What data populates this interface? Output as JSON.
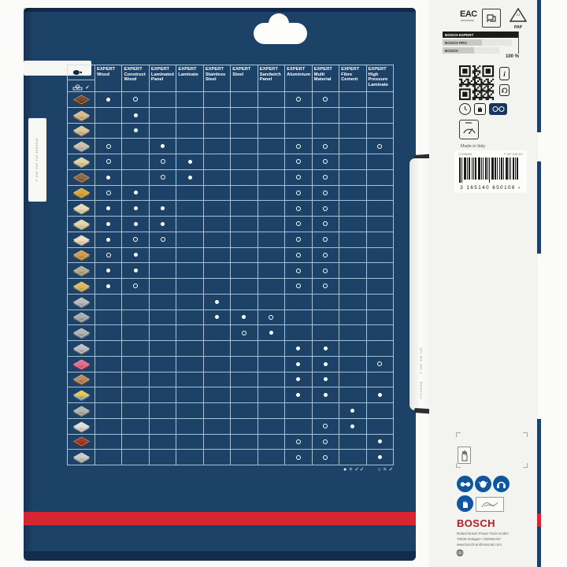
{
  "package": {
    "brand_blue": "#1c4268",
    "accent_red": "#d62631",
    "left_label_codes": [
      "F 03F 305 110",
      "1609203"
    ],
    "table": {
      "machine_rows": [
        {
          "icon": "circular-saw-icon",
          "check": "✓"
        },
        {
          "icon": "table-saw-icon",
          "check": "✓"
        }
      ],
      "columns": [
        {
          "brand": "EXPERT",
          "name": "Wood"
        },
        {
          "brand": "EXPERT",
          "name": "Construct Wood"
        },
        {
          "brand": "EXPERT",
          "name": "Laminated Panel"
        },
        {
          "brand": "EXPERT",
          "name": "Laminate"
        },
        {
          "brand": "EXPERT",
          "name": "Stainless Steel"
        },
        {
          "brand": "EXPERT",
          "name": "Steel"
        },
        {
          "brand": "EXPERT",
          "name": "Sandwich Panel"
        },
        {
          "brand": "EXPERT",
          "name": "Aluminium"
        },
        {
          "brand": "EXPERT",
          "name": "Multi Material"
        },
        {
          "brand": "EXPERT",
          "name": "Fibre Cement"
        },
        {
          "brand": "EXPERT",
          "name": "High Pressure Laminate"
        }
      ],
      "dot_values": {
        "2": "double-check",
        "1": "single-check",
        "0": "none"
      },
      "rows": [
        {
          "icon": "solid-hardwood",
          "colors": [
            "#7d4b2a",
            "#53301a"
          ],
          "dots": [
            2,
            1,
            0,
            0,
            0,
            0,
            0,
            1,
            1,
            0,
            0
          ]
        },
        {
          "icon": "softwood-planks",
          "colors": [
            "#d9bb8e",
            "#a8845c"
          ],
          "dots": [
            0,
            2,
            0,
            0,
            0,
            0,
            0,
            0,
            0,
            0,
            0
          ]
        },
        {
          "icon": "planed-board",
          "colors": [
            "#dec69b",
            "#ab8a60"
          ],
          "dots": [
            0,
            2,
            0,
            0,
            0,
            0,
            0,
            0,
            0,
            0,
            0
          ]
        },
        {
          "icon": "worktop-board",
          "colors": [
            "#cfc0a6",
            "#8f9398"
          ],
          "dots": [
            1,
            0,
            2,
            0,
            0,
            0,
            0,
            1,
            1,
            0,
            1
          ]
        },
        {
          "icon": "laminate-board",
          "colors": [
            "#e4d0a5",
            "#b09c6e"
          ],
          "dots": [
            1,
            0,
            1,
            2,
            0,
            0,
            0,
            1,
            1,
            0,
            0
          ]
        },
        {
          "icon": "rough-sawn-wood",
          "colors": [
            "#8d6b49",
            "#5f452c"
          ],
          "dots": [
            2,
            0,
            1,
            2,
            0,
            0,
            0,
            1,
            1,
            0,
            0
          ]
        },
        {
          "icon": "osb-board",
          "colors": [
            "#dca834",
            "#a87c22"
          ],
          "dots": [
            1,
            2,
            0,
            0,
            0,
            0,
            0,
            1,
            1,
            0,
            0
          ]
        },
        {
          "icon": "glued-panel",
          "colors": [
            "#ead9b8",
            "#bca87e"
          ],
          "dots": [
            2,
            2,
            2,
            0,
            0,
            0,
            0,
            1,
            1,
            0,
            0
          ]
        },
        {
          "icon": "blockboard",
          "colors": [
            "#e7d3ae",
            "#b7a077"
          ],
          "dots": [
            2,
            2,
            2,
            0,
            0,
            0,
            0,
            1,
            1,
            0,
            0
          ]
        },
        {
          "icon": "veneer-board",
          "colors": [
            "#eedec3",
            "#c0ab85"
          ],
          "dots": [
            2,
            1,
            1,
            0,
            0,
            0,
            0,
            1,
            1,
            0,
            0
          ]
        },
        {
          "icon": "chipboard",
          "colors": [
            "#d69a4d",
            "#a06f2e"
          ],
          "dots": [
            1,
            2,
            0,
            0,
            0,
            0,
            0,
            1,
            1,
            0,
            0
          ]
        },
        {
          "icon": "weathered-wood",
          "colors": [
            "#b7ab92",
            "#857a62"
          ],
          "dots": [
            2,
            2,
            0,
            0,
            0,
            0,
            0,
            1,
            1,
            0,
            0
          ]
        },
        {
          "icon": "fresh-softwood",
          "colors": [
            "#e2ba5e",
            "#b18a38"
          ],
          "dots": [
            2,
            1,
            0,
            0,
            0,
            0,
            0,
            1,
            1,
            0,
            0
          ]
        },
        {
          "icon": "stainless-sheet",
          "colors": [
            "#b9bbbd",
            "#85888b"
          ],
          "dots": [
            0,
            0,
            0,
            0,
            2,
            0,
            0,
            0,
            0,
            0,
            0
          ]
        },
        {
          "icon": "steel-profile",
          "colors": [
            "#aaadb0",
            "#77797c"
          ],
          "dots": [
            0,
            0,
            0,
            0,
            2,
            2,
            1,
            0,
            0,
            0,
            0
          ]
        },
        {
          "icon": "thin-metal-sheet",
          "colors": [
            "#b2b5b8",
            "#7e8184"
          ],
          "dots": [
            0,
            0,
            0,
            0,
            0,
            1,
            2,
            0,
            0,
            0,
            0
          ]
        },
        {
          "icon": "aluminium-profile",
          "colors": [
            "#bcbfc2",
            "#8a8d90"
          ],
          "dots": [
            0,
            0,
            0,
            0,
            0,
            0,
            0,
            2,
            2,
            0,
            0
          ]
        },
        {
          "icon": "solid-surface",
          "colors": [
            "#e66e8e",
            "#b23a5c"
          ],
          "dots": [
            0,
            0,
            0,
            0,
            0,
            0,
            0,
            2,
            2,
            0,
            1
          ]
        },
        {
          "icon": "sandwich-panel",
          "colors": [
            "#bb8c5c",
            "#8a5f34"
          ],
          "dots": [
            0,
            0,
            0,
            0,
            0,
            0,
            0,
            2,
            2,
            0,
            0
          ]
        },
        {
          "icon": "multi-layer-stack",
          "colors": [
            "#e9c94c",
            "#5a7fb5"
          ],
          "dots": [
            0,
            0,
            0,
            0,
            0,
            0,
            0,
            2,
            2,
            0,
            2
          ]
        },
        {
          "icon": "fibre-cement-board",
          "colors": [
            "#b5b3ad",
            "#807e78"
          ],
          "dots": [
            0,
            0,
            0,
            0,
            0,
            0,
            0,
            0,
            0,
            2,
            0
          ]
        },
        {
          "icon": "plasterboard",
          "colors": [
            "#e0dfdc",
            "#a7a6a2"
          ],
          "dots": [
            0,
            0,
            0,
            0,
            0,
            0,
            0,
            0,
            1,
            2,
            0
          ]
        },
        {
          "icon": "hpl-board",
          "colors": [
            "#9c3c2b",
            "#6b2518"
          ],
          "dots": [
            0,
            0,
            0,
            0,
            0,
            0,
            0,
            1,
            1,
            0,
            2
          ]
        },
        {
          "icon": "mineral-board",
          "colors": [
            "#cbcbc7",
            "#949490"
          ],
          "dots": [
            0,
            0,
            0,
            0,
            0,
            0,
            0,
            1,
            1,
            0,
            2
          ]
        }
      ],
      "legend": {
        "filled_label": "● = ✓✓",
        "open_label": "○ = ✓"
      }
    }
  },
  "clip": {
    "codes": [
      "F 03F 305 110",
      "17196058"
    ]
  },
  "right_panel": {
    "eac_label": "EAC",
    "pap_triangle": {
      "number": "21",
      "label": "PAP"
    },
    "compare": {
      "bars": [
        {
          "label": "BOSCH EXPERT"
        },
        {
          "label": "BOSCH PRO"
        },
        {
          "label": "BOSCH"
        }
      ],
      "value_label": "100 %"
    },
    "info_icon_label": "i",
    "gauge_label": "max.",
    "made_in": "Made in Italy",
    "barcode": {
      "left_code": "17196058",
      "right_code": "F 03F 305 110",
      "ean_digits": "3 165140 650106 ›"
    },
    "bosch_logo": "BOSCH",
    "address_lines": [
      "Robert Bosch Power Tools GmbH",
      "70538 Stuttgart • GERMANY",
      "www.bosch-professional.com"
    ]
  }
}
